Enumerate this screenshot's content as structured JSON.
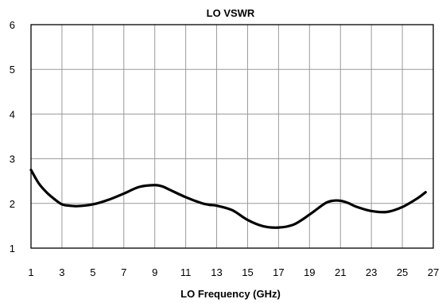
{
  "chart_data": {
    "type": "line",
    "title": "LO VSWR",
    "xlabel": "LO Frequency (GHz)",
    "ylabel": "",
    "xlim": [
      1,
      27
    ],
    "ylim": [
      1,
      6
    ],
    "xticks": [
      1,
      3,
      5,
      7,
      9,
      11,
      13,
      15,
      17,
      19,
      21,
      23,
      25,
      27
    ],
    "yticks": [
      1,
      2,
      3,
      4,
      5,
      6
    ],
    "grid": true,
    "series": [
      {
        "color": "#000000",
        "x": [
          1,
          1.5,
          2,
          2.5,
          3,
          3.5,
          4,
          5,
          6,
          7,
          8,
          9,
          9.5,
          10,
          11,
          12,
          12.5,
          13,
          14,
          15,
          16,
          17,
          18,
          19,
          20,
          20.5,
          21,
          21.5,
          22,
          23,
          24,
          25,
          26,
          26.5
        ],
        "y": [
          2.75,
          2.45,
          2.25,
          2.1,
          1.98,
          1.95,
          1.94,
          1.98,
          2.08,
          2.22,
          2.37,
          2.41,
          2.38,
          2.3,
          2.14,
          2.01,
          1.97,
          1.95,
          1.85,
          1.63,
          1.49,
          1.46,
          1.53,
          1.75,
          2.0,
          2.06,
          2.06,
          2.01,
          1.93,
          1.83,
          1.81,
          1.92,
          2.12,
          2.25
        ]
      }
    ]
  }
}
